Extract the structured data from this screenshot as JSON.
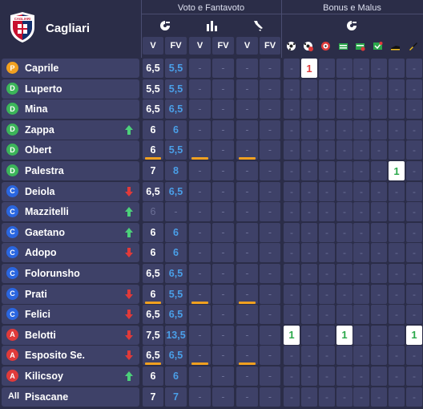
{
  "team": {
    "name": "Cagliari",
    "crest_text": "CAGLIARI"
  },
  "groups": {
    "votes": "Voto e Fantavoto",
    "bonus": "Bonus e Malus"
  },
  "columns": [
    "V",
    "FV",
    "V",
    "FV",
    "V",
    "FV"
  ],
  "bonus_icons": [
    "goal-scored-icon",
    "goal-conceded-icon",
    "penalty-saved-icon",
    "yellow-card-icon",
    "red-card-icon",
    "own-goal-icon",
    "assist-icon",
    "clean-sheet-icon"
  ],
  "colors": {
    "accent_blue": "#4a9fe8",
    "underline_orange": "#f0a020",
    "up_arrow": "#4cd07a",
    "down_arrow": "#e03a3a"
  },
  "players": [
    {
      "role": "P",
      "name": "Caprile",
      "trend": "",
      "v1": "6,5",
      "fv1": "5,5",
      "v2": "-",
      "fv2": "-",
      "v3": "-",
      "fv3": "-",
      "ul": [],
      "bonus": [
        "-",
        "1",
        "-",
        "-",
        "-",
        "-",
        "-",
        "-"
      ],
      "hl": [
        1
      ],
      "hl_color": "red"
    },
    {
      "role": "D",
      "name": "Luperto",
      "trend": "",
      "v1": "5,5",
      "fv1": "5,5",
      "v2": "-",
      "fv2": "-",
      "v3": "-",
      "fv3": "-",
      "ul": [],
      "bonus": [
        "-",
        "-",
        "-",
        "-",
        "-",
        "-",
        "-",
        "-"
      ],
      "hl": []
    },
    {
      "role": "D",
      "name": "Mina",
      "trend": "",
      "v1": "6,5",
      "fv1": "6,5",
      "v2": "-",
      "fv2": "-",
      "v3": "-",
      "fv3": "-",
      "ul": [],
      "bonus": [
        "-",
        "-",
        "-",
        "-",
        "-",
        "-",
        "-",
        "-"
      ],
      "hl": []
    },
    {
      "role": "D",
      "name": "Zappa",
      "trend": "up",
      "v1": "6",
      "fv1": "6",
      "v2": "-",
      "fv2": "-",
      "v3": "-",
      "fv3": "-",
      "ul": [],
      "bonus": [
        "-",
        "-",
        "-",
        "-",
        "-",
        "-",
        "-",
        "-"
      ],
      "hl": []
    },
    {
      "role": "D",
      "name": "Obert",
      "trend": "",
      "v1": "6",
      "fv1": "5,5",
      "v2": "-",
      "fv2": "-",
      "v3": "-",
      "fv3": "-",
      "ul": [
        0,
        2,
        4
      ],
      "bonus": [
        "-",
        "-",
        "-",
        "-",
        "-",
        "-",
        "-",
        "-"
      ],
      "hl": []
    },
    {
      "role": "D",
      "name": "Palestra",
      "trend": "",
      "v1": "7",
      "fv1": "8",
      "v2": "-",
      "fv2": "-",
      "v3": "-",
      "fv3": "-",
      "ul": [],
      "bonus": [
        "-",
        "-",
        "-",
        "-",
        "-",
        "-",
        "1",
        "-"
      ],
      "hl": [
        6
      ],
      "hl_color": "green"
    },
    {
      "role": "C",
      "name": "Deiola",
      "trend": "down",
      "v1": "6,5",
      "fv1": "6,5",
      "v2": "-",
      "fv2": "-",
      "v3": "-",
      "fv3": "-",
      "ul": [],
      "bonus": [
        "-",
        "-",
        "-",
        "-",
        "-",
        "-",
        "-",
        "-"
      ],
      "hl": []
    },
    {
      "role": "C",
      "name": "Mazzitelli",
      "trend": "up",
      "v1": "6",
      "fv1": "-",
      "v2": "-",
      "fv2": "-",
      "v3": "-",
      "fv3": "-",
      "ul": [],
      "dim": true,
      "bonus": [
        "-",
        "-",
        "-",
        "-",
        "-",
        "-",
        "-",
        "-"
      ],
      "hl": []
    },
    {
      "role": "C",
      "name": "Gaetano",
      "trend": "up",
      "v1": "6",
      "fv1": "6",
      "v2": "-",
      "fv2": "-",
      "v3": "-",
      "fv3": "-",
      "ul": [],
      "bonus": [
        "-",
        "-",
        "-",
        "-",
        "-",
        "-",
        "-",
        "-"
      ],
      "hl": []
    },
    {
      "role": "C",
      "name": "Adopo",
      "trend": "down",
      "v1": "6",
      "fv1": "6",
      "v2": "-",
      "fv2": "-",
      "v3": "-",
      "fv3": "-",
      "ul": [],
      "bonus": [
        "-",
        "-",
        "-",
        "-",
        "-",
        "-",
        "-",
        "-"
      ],
      "hl": []
    },
    {
      "role": "C",
      "name": "Folorunsho",
      "trend": "",
      "v1": "6,5",
      "fv1": "6,5",
      "v2": "-",
      "fv2": "-",
      "v3": "-",
      "fv3": "-",
      "ul": [],
      "bonus": [
        "-",
        "-",
        "-",
        "-",
        "-",
        "-",
        "-",
        "-"
      ],
      "hl": []
    },
    {
      "role": "C",
      "name": "Prati",
      "trend": "down",
      "v1": "6",
      "fv1": "5,5",
      "v2": "-",
      "fv2": "-",
      "v3": "-",
      "fv3": "-",
      "ul": [
        0,
        2,
        4
      ],
      "bonus": [
        "-",
        "-",
        "-",
        "-",
        "-",
        "-",
        "-",
        "-"
      ],
      "hl": []
    },
    {
      "role": "C",
      "name": "Felici",
      "trend": "down",
      "v1": "6,5",
      "fv1": "6,5",
      "v2": "-",
      "fv2": "-",
      "v3": "-",
      "fv3": "-",
      "ul": [],
      "bonus": [
        "-",
        "-",
        "-",
        "-",
        "-",
        "-",
        "-",
        "-"
      ],
      "hl": []
    },
    {
      "role": "A",
      "name": "Belotti",
      "trend": "down",
      "v1": "7,5",
      "fv1": "13,5",
      "v2": "-",
      "fv2": "-",
      "v3": "-",
      "fv3": "-",
      "ul": [],
      "bonus": [
        "1",
        "-",
        "-",
        "1",
        "-",
        "-",
        "-",
        "1"
      ],
      "hl": [
        0,
        3,
        7
      ],
      "hl_color": "green"
    },
    {
      "role": "A",
      "name": "Esposito Se.",
      "trend": "down",
      "v1": "6,5",
      "fv1": "6,5",
      "v2": "-",
      "fv2": "-",
      "v3": "-",
      "fv3": "-",
      "ul": [
        0,
        2,
        4
      ],
      "bonus": [
        "-",
        "-",
        "-",
        "-",
        "-",
        "-",
        "-",
        "-"
      ],
      "hl": []
    },
    {
      "role": "A",
      "name": "Kilicsoy",
      "trend": "up",
      "v1": "6",
      "fv1": "6",
      "v2": "-",
      "fv2": "-",
      "v3": "-",
      "fv3": "-",
      "ul": [],
      "bonus": [
        "-",
        "-",
        "-",
        "-",
        "-",
        "-",
        "-",
        "-"
      ],
      "hl": []
    },
    {
      "role": "All",
      "name": "Pisacane",
      "trend": "",
      "v1": "7",
      "fv1": "7",
      "v2": "-",
      "fv2": "-",
      "v3": "-",
      "fv3": "-",
      "ul": [],
      "bonus": [
        "-",
        "-",
        "-",
        "-",
        "-",
        "-",
        "-",
        "-"
      ],
      "hl": []
    }
  ]
}
